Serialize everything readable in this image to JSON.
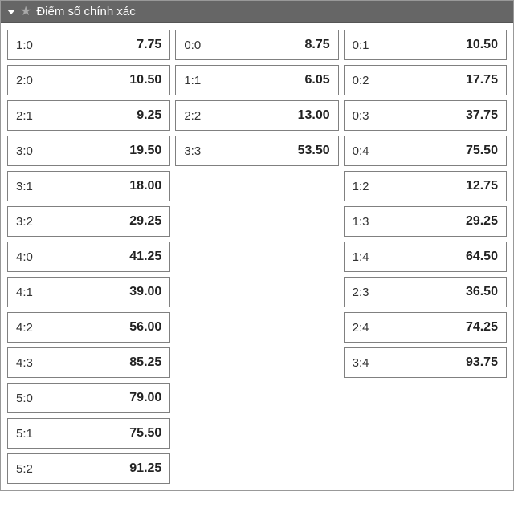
{
  "header": {
    "title": "Điểm số chính xác"
  },
  "columns": [
    [
      {
        "score": "1:0",
        "odds": "7.75"
      },
      {
        "score": "2:0",
        "odds": "10.50"
      },
      {
        "score": "2:1",
        "odds": "9.25"
      },
      {
        "score": "3:0",
        "odds": "19.50"
      },
      {
        "score": "3:1",
        "odds": "18.00"
      },
      {
        "score": "3:2",
        "odds": "29.25"
      },
      {
        "score": "4:0",
        "odds": "41.25"
      },
      {
        "score": "4:1",
        "odds": "39.00"
      },
      {
        "score": "4:2",
        "odds": "56.00"
      },
      {
        "score": "4:3",
        "odds": "85.25"
      },
      {
        "score": "5:0",
        "odds": "79.00"
      },
      {
        "score": "5:1",
        "odds": "75.50"
      },
      {
        "score": "5:2",
        "odds": "91.25"
      }
    ],
    [
      {
        "score": "0:0",
        "odds": "8.75"
      },
      {
        "score": "1:1",
        "odds": "6.05"
      },
      {
        "score": "2:2",
        "odds": "13.00"
      },
      {
        "score": "3:3",
        "odds": "53.50"
      }
    ],
    [
      {
        "score": "0:1",
        "odds": "10.50"
      },
      {
        "score": "0:2",
        "odds": "17.75"
      },
      {
        "score": "0:3",
        "odds": "37.75"
      },
      {
        "score": "0:4",
        "odds": "75.50"
      },
      {
        "score": "1:2",
        "odds": "12.75"
      },
      {
        "score": "1:3",
        "odds": "29.25"
      },
      {
        "score": "1:4",
        "odds": "64.50"
      },
      {
        "score": "2:3",
        "odds": "36.50"
      },
      {
        "score": "2:4",
        "odds": "74.25"
      },
      {
        "score": "3:4",
        "odds": "93.75"
      }
    ]
  ],
  "style": {
    "header_bg": "#666666",
    "header_text": "#ffffff",
    "star_color": "#a8a8a8",
    "cell_border": "#808080",
    "cell_bg": "#ffffff",
    "score_color": "#333333",
    "odds_color": "#222222",
    "odds_weight": "bold",
    "score_fontsize": 15,
    "odds_fontsize": 16,
    "col_gap": 6,
    "cell_gap": 6
  }
}
